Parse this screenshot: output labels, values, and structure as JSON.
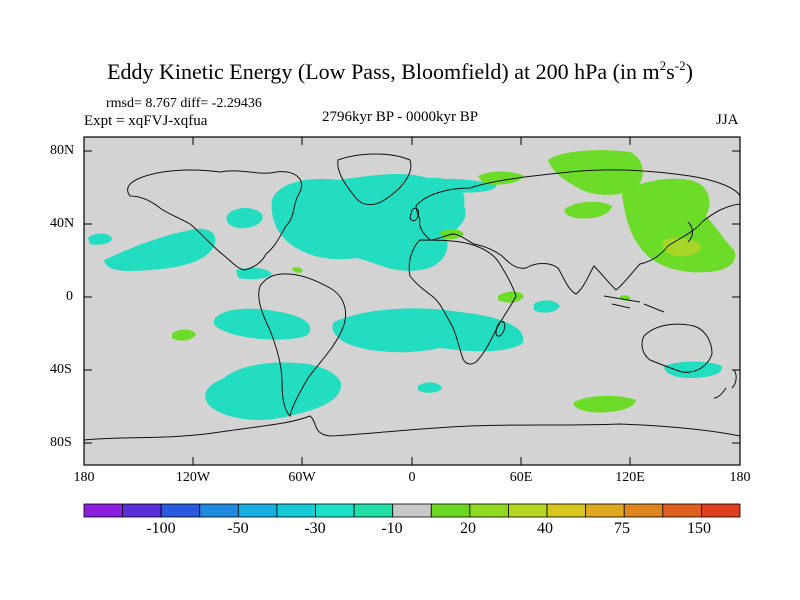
{
  "title_main": "Eddy Kinetic Energy (Low Pass, Bloomfield) at 200 hPa (in m",
  "title_sup1": "2",
  "title_mid": "s",
  "title_sup2": "-2",
  "title_end": ")",
  "stats": "rmsd= 8.767 diff= -2.29436",
  "experiment": "Expt = xqFVJ-xqfua",
  "period": "2796kyr BP - 0000kyr BP",
  "season": "JJA",
  "y_ticks": [
    "80N",
    "40N",
    "0",
    "40S",
    "80S"
  ],
  "x_ticks": [
    "180",
    "120W",
    "60W",
    "0",
    "60E",
    "120E",
    "180"
  ],
  "colorbar": {
    "labels": [
      "-100",
      "-50",
      "-30",
      "-10",
      "20",
      "40",
      "75",
      "150"
    ],
    "colors": [
      "#8c1ee0",
      "#5a2ed8",
      "#2a5ae0",
      "#1e8ae0",
      "#16aee0",
      "#16cad8",
      "#1ae0c8",
      "#20e0a8",
      "#c8c8c8",
      "#6ad81e",
      "#8ed81e",
      "#b4d820",
      "#d8c81e",
      "#e0a81e",
      "#e0841e",
      "#e0601e",
      "#e03e1e"
    ]
  },
  "colors": {
    "background_value": "#d3d3d3",
    "negative_fill": "#22ddc0",
    "positive_fill": "#6ddc28",
    "positive_strong": "#a8d628"
  }
}
